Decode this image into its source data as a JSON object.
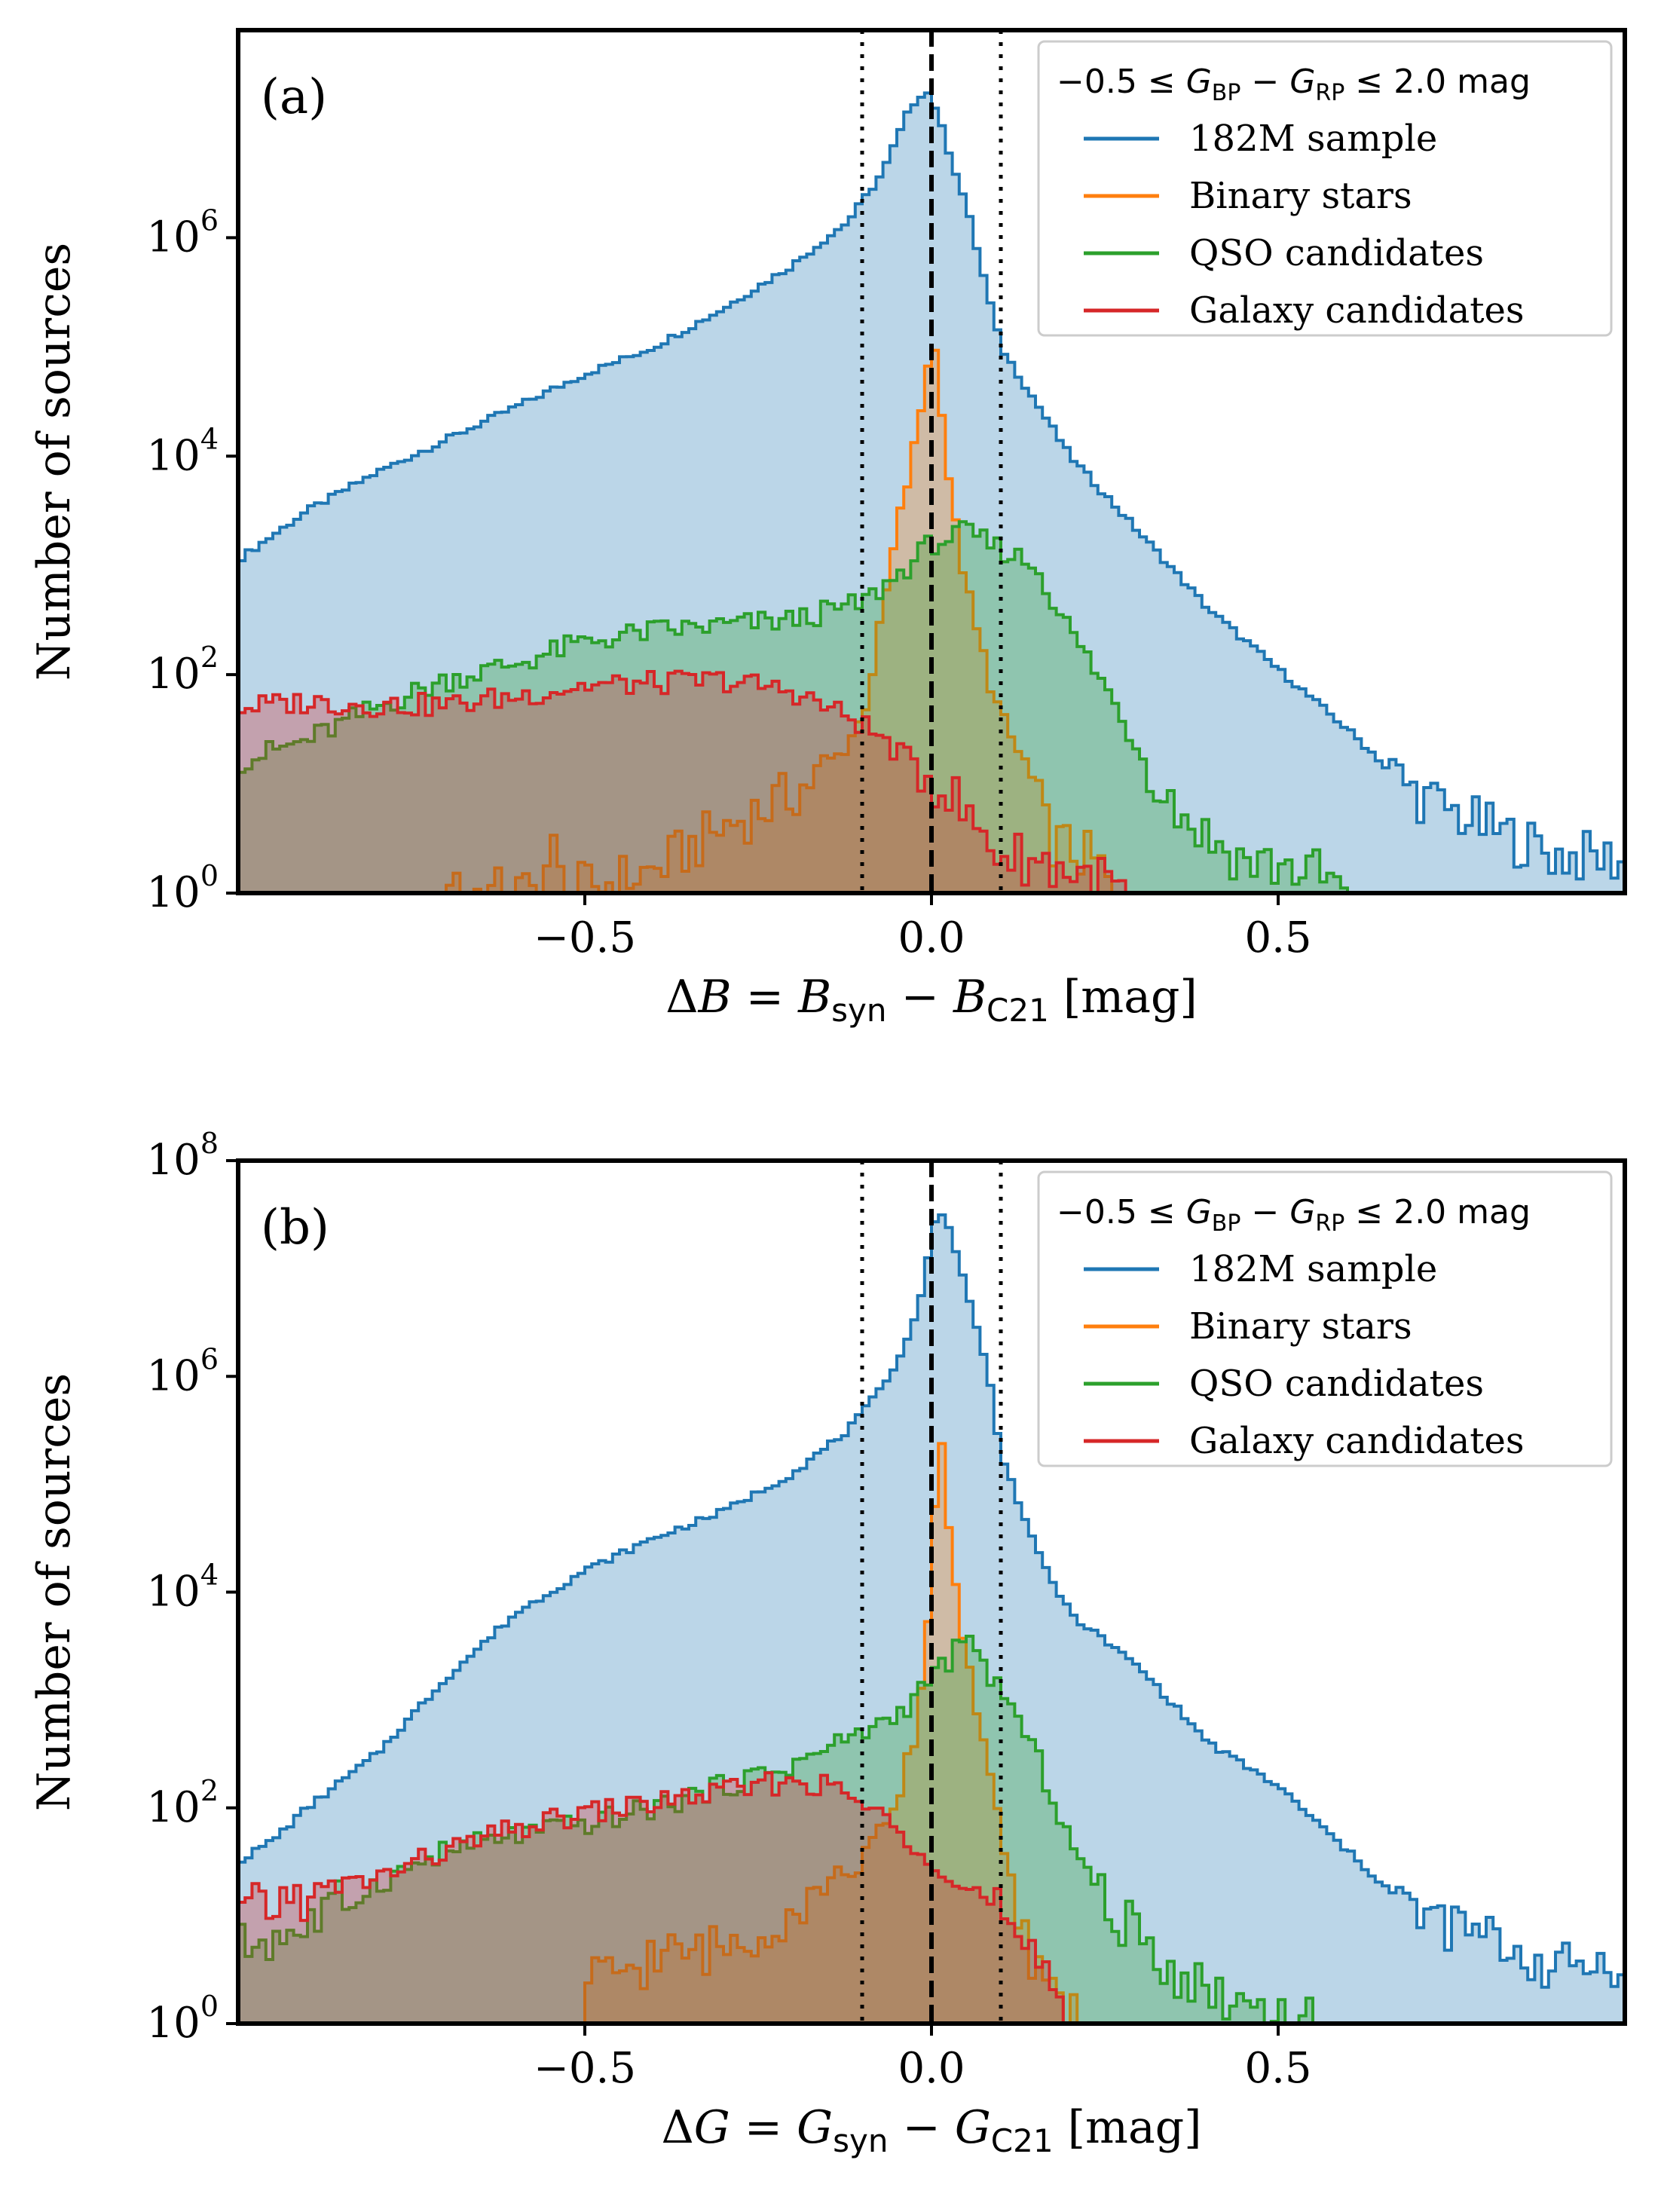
{
  "colors": {
    "sample": "#1f77b4",
    "binary": "#ff7f0e",
    "qso": "#2ca02c",
    "galaxy": "#d62728",
    "vline": "#000000"
  },
  "chart_data": [
    {
      "type": "histogram",
      "panel_label": "(a)",
      "xlabel": "ΔB = B_syn − B_C21 [mag]",
      "xlabel_parts": {
        "delta": "Δ",
        "var": "B",
        "eq": " = ",
        "sub_syn": "syn",
        "minus": " − ",
        "sub_ref": "C21",
        "unit": " [mag]"
      },
      "ylabel": "Number of sources",
      "xlim": [
        -1.0,
        1.0
      ],
      "ylim_log10": [
        0,
        7.9
      ],
      "yscale": "log",
      "xticks": [
        -0.5,
        0.0,
        0.5
      ],
      "xtick_labels": [
        "−0.5",
        "0.0",
        "0.5"
      ],
      "yticks_exp": [
        0,
        2,
        4,
        6
      ],
      "ytick_labels": [
        {
          "base": "10",
          "exp": "0"
        },
        {
          "base": "10",
          "exp": "2"
        },
        {
          "base": "10",
          "exp": "4"
        },
        {
          "base": "10",
          "exp": "6"
        }
      ],
      "vlines": [
        {
          "x": 0.0,
          "style": "dashed"
        },
        {
          "x": -0.1,
          "style": "dotted"
        },
        {
          "x": 0.1,
          "style": "dotted"
        }
      ],
      "legend": {
        "title": "−0.5 ≤ G_BP − G_RP ≤ 2.0 mag",
        "title_parts": {
          "lead": "−0.5 ≤ ",
          "g1": "G",
          "s1": "BP",
          "mid": " − ",
          "g2": "G",
          "s2": "RP",
          "tail": " ≤ 2.0 mag"
        },
        "entries": [
          "182M sample",
          "Binary stars",
          "QSO candidates",
          "Galaxy candidates"
        ],
        "location": "upper right"
      },
      "series": [
        {
          "name": "182M sample",
          "color_key": "sample",
          "points": [
            [
              -1.0,
              3.05
            ],
            [
              -0.9,
              3.5
            ],
            [
              -0.8,
              3.85
            ],
            [
              -0.7,
              4.15
            ],
            [
              -0.6,
              4.45
            ],
            [
              -0.5,
              4.75
            ],
            [
              -0.4,
              5.0
            ],
            [
              -0.3,
              5.35
            ],
            [
              -0.2,
              5.75
            ],
            [
              -0.12,
              6.15
            ],
            [
              -0.07,
              6.6
            ],
            [
              -0.03,
              7.2
            ],
            [
              -0.01,
              7.35
            ],
            [
              0.0,
              7.3
            ],
            [
              0.02,
              6.9
            ],
            [
              0.05,
              6.3
            ],
            [
              0.1,
              5.0
            ],
            [
              0.15,
              4.5
            ],
            [
              0.2,
              4.0
            ],
            [
              0.3,
              3.3
            ],
            [
              0.4,
              2.6
            ],
            [
              0.5,
              2.05
            ],
            [
              0.6,
              1.5
            ],
            [
              0.7,
              0.9
            ],
            [
              0.8,
              0.6
            ],
            [
              0.9,
              0.35
            ],
            [
              1.0,
              0.3
            ]
          ]
        },
        {
          "name": "Binary stars",
          "color_key": "binary",
          "points": [
            [
              -0.7,
              0.0
            ],
            [
              -0.69,
              0.3
            ],
            [
              -0.68,
              0.0
            ],
            [
              -0.56,
              0.0
            ],
            [
              -0.55,
              0.5
            ],
            [
              -0.53,
              0.0
            ],
            [
              -0.4,
              0.2
            ],
            [
              -0.3,
              0.6
            ],
            [
              -0.2,
              0.9
            ],
            [
              -0.14,
              1.2
            ],
            [
              -0.1,
              1.6
            ],
            [
              -0.08,
              2.2
            ],
            [
              -0.05,
              3.3
            ],
            [
              -0.02,
              4.2
            ],
            [
              0.0,
              5.1
            ],
            [
              0.01,
              4.8
            ],
            [
              0.03,
              3.5
            ],
            [
              0.06,
              2.5
            ],
            [
              0.1,
              1.6
            ],
            [
              0.14,
              1.1
            ],
            [
              0.17,
              0.5
            ],
            [
              0.2,
              0.4
            ],
            [
              0.23,
              0.3
            ],
            [
              0.25,
              0.2
            ],
            [
              0.26,
              0.0
            ]
          ]
        },
        {
          "name": "QSO candidates",
          "color_key": "qso",
          "points": [
            [
              -1.0,
              1.2
            ],
            [
              -0.9,
              1.4
            ],
            [
              -0.8,
              1.7
            ],
            [
              -0.7,
              1.95
            ],
            [
              -0.6,
              2.1
            ],
            [
              -0.5,
              2.3
            ],
            [
              -0.4,
              2.4
            ],
            [
              -0.3,
              2.45
            ],
            [
              -0.2,
              2.5
            ],
            [
              -0.1,
              2.65
            ],
            [
              -0.05,
              2.9
            ],
            [
              0.0,
              3.2
            ],
            [
              0.05,
              3.3
            ],
            [
              0.1,
              3.15
            ],
            [
              0.15,
              3.0
            ],
            [
              0.2,
              2.4
            ],
            [
              0.25,
              1.9
            ],
            [
              0.3,
              1.3
            ],
            [
              0.35,
              0.8
            ],
            [
              0.4,
              0.5
            ],
            [
              0.45,
              0.3
            ],
            [
              0.5,
              0.25
            ],
            [
              0.55,
              0.2
            ],
            [
              0.6,
              0.0
            ]
          ]
        },
        {
          "name": "Galaxy candidates",
          "color_key": "galaxy",
          "points": [
            [
              -1.0,
              1.7
            ],
            [
              -0.9,
              1.75
            ],
            [
              -0.8,
              1.72
            ],
            [
              -0.7,
              1.72
            ],
            [
              -0.6,
              1.8
            ],
            [
              -0.5,
              1.9
            ],
            [
              -0.4,
              1.92
            ],
            [
              -0.3,
              1.95
            ],
            [
              -0.2,
              1.85
            ],
            [
              -0.15,
              1.7
            ],
            [
              -0.1,
              1.55
            ],
            [
              -0.05,
              1.3
            ],
            [
              0.0,
              1.05
            ],
            [
              0.03,
              0.9
            ],
            [
              0.05,
              0.7
            ],
            [
              0.08,
              0.5
            ],
            [
              0.1,
              0.35
            ],
            [
              0.15,
              0.3
            ],
            [
              0.2,
              0.2
            ],
            [
              0.25,
              0.1
            ],
            [
              0.28,
              0.0
            ]
          ]
        }
      ]
    },
    {
      "type": "histogram",
      "panel_label": "(b)",
      "xlabel": "ΔG = G_syn − G_C21 [mag]",
      "xlabel_parts": {
        "delta": "Δ",
        "var": "G",
        "eq": " = ",
        "sub_syn": "syn",
        "minus": " − ",
        "sub_ref": "C21",
        "unit": " [mag]"
      },
      "ylabel": "Number of sources",
      "xlim": [
        -1.0,
        1.0
      ],
      "ylim_log10": [
        0,
        8.0
      ],
      "yscale": "log",
      "xticks": [
        -0.5,
        0.0,
        0.5
      ],
      "xtick_labels": [
        "−0.5",
        "0.0",
        "0.5"
      ],
      "yticks_exp": [
        0,
        2,
        4,
        6,
        8
      ],
      "ytick_labels": [
        {
          "base": "10",
          "exp": "0"
        },
        {
          "base": "10",
          "exp": "2"
        },
        {
          "base": "10",
          "exp": "4"
        },
        {
          "base": "10",
          "exp": "6"
        },
        {
          "base": "10",
          "exp": "8"
        }
      ],
      "vlines": [
        {
          "x": 0.0,
          "style": "dashed"
        },
        {
          "x": -0.1,
          "style": "dotted"
        },
        {
          "x": 0.1,
          "style": "dotted"
        }
      ],
      "legend": {
        "title": "−0.5 ≤ G_BP − G_RP ≤ 2.0 mag",
        "title_parts": {
          "lead": "−0.5 ≤ ",
          "g1": "G",
          "s1": "BP",
          "mid": " − ",
          "g2": "G",
          "s2": "RP",
          "tail": " ≤ 2.0 mag"
        },
        "entries": [
          "182M sample",
          "Binary stars",
          "QSO candidates",
          "Galaxy candidates"
        ],
        "location": "upper right"
      },
      "series": [
        {
          "name": "182M sample",
          "color_key": "sample",
          "points": [
            [
              -1.0,
              1.5
            ],
            [
              -0.95,
              1.7
            ],
            [
              -0.9,
              2.0
            ],
            [
              -0.8,
              2.5
            ],
            [
              -0.7,
              3.2
            ],
            [
              -0.6,
              3.8
            ],
            [
              -0.5,
              4.2
            ],
            [
              -0.4,
              4.5
            ],
            [
              -0.3,
              4.75
            ],
            [
              -0.2,
              5.1
            ],
            [
              -0.12,
              5.5
            ],
            [
              -0.07,
              5.9
            ],
            [
              -0.03,
              6.4
            ],
            [
              -0.01,
              6.9
            ],
            [
              0.01,
              7.6
            ],
            [
              0.03,
              7.3
            ],
            [
              0.05,
              6.8
            ],
            [
              0.08,
              6.1
            ],
            [
              0.1,
              5.3
            ],
            [
              0.15,
              4.4
            ],
            [
              0.2,
              3.8
            ],
            [
              0.3,
              3.3
            ],
            [
              0.4,
              2.6
            ],
            [
              0.5,
              2.2
            ],
            [
              0.6,
              1.6
            ],
            [
              0.7,
              1.0
            ],
            [
              0.8,
              0.8
            ],
            [
              0.9,
              0.5
            ],
            [
              1.0,
              0.6
            ]
          ]
        },
        {
          "name": "Binary stars",
          "color_key": "binary",
          "points": [
            [
              -0.5,
              0.0
            ],
            [
              -0.49,
              0.4
            ],
            [
              -0.4,
              0.6
            ],
            [
              -0.3,
              0.7
            ],
            [
              -0.2,
              1.05
            ],
            [
              -0.15,
              1.3
            ],
            [
              -0.1,
              1.5
            ],
            [
              -0.05,
              2.0
            ],
            [
              -0.02,
              2.8
            ],
            [
              0.0,
              4.0
            ],
            [
              0.01,
              5.7
            ],
            [
              0.03,
              4.3
            ],
            [
              0.05,
              3.4
            ],
            [
              0.08,
              2.5
            ],
            [
              0.1,
              1.7
            ],
            [
              0.12,
              1.0
            ],
            [
              0.15,
              0.5
            ],
            [
              0.18,
              0.3
            ],
            [
              0.2,
              0.2
            ],
            [
              0.21,
              0.0
            ]
          ]
        },
        {
          "name": "QSO candidates",
          "color_key": "qso",
          "points": [
            [
              -1.0,
              0.7
            ],
            [
              -0.9,
              0.9
            ],
            [
              -0.8,
              1.3
            ],
            [
              -0.7,
              1.6
            ],
            [
              -0.6,
              1.75
            ],
            [
              -0.5,
              1.85
            ],
            [
              -0.4,
              2.0
            ],
            [
              -0.3,
              2.2
            ],
            [
              -0.2,
              2.4
            ],
            [
              -0.1,
              2.7
            ],
            [
              -0.05,
              2.85
            ],
            [
              0.0,
              3.2
            ],
            [
              0.05,
              3.55
            ],
            [
              0.1,
              3.1
            ],
            [
              0.15,
              2.5
            ],
            [
              0.2,
              1.7
            ],
            [
              0.25,
              1.1
            ],
            [
              0.3,
              0.8
            ],
            [
              0.35,
              0.5
            ],
            [
              0.4,
              0.3
            ],
            [
              0.45,
              0.2
            ],
            [
              0.5,
              0.1
            ],
            [
              0.55,
              0.0
            ]
          ]
        },
        {
          "name": "Galaxy candidates",
          "color_key": "galaxy",
          "points": [
            [
              -1.0,
              1.0
            ],
            [
              -0.9,
              1.2
            ],
            [
              -0.8,
              1.35
            ],
            [
              -0.7,
              1.6
            ],
            [
              -0.6,
              1.8
            ],
            [
              -0.5,
              1.95
            ],
            [
              -0.4,
              2.05
            ],
            [
              -0.3,
              2.15
            ],
            [
              -0.2,
              2.25
            ],
            [
              -0.15,
              2.2
            ],
            [
              -0.1,
              2.05
            ],
            [
              -0.05,
              1.8
            ],
            [
              0.0,
              1.55
            ],
            [
              0.05,
              1.25
            ],
            [
              0.1,
              1.05
            ],
            [
              0.12,
              0.7
            ],
            [
              0.15,
              0.5
            ],
            [
              0.18,
              0.3
            ],
            [
              0.2,
              0.0
            ]
          ]
        }
      ]
    }
  ]
}
